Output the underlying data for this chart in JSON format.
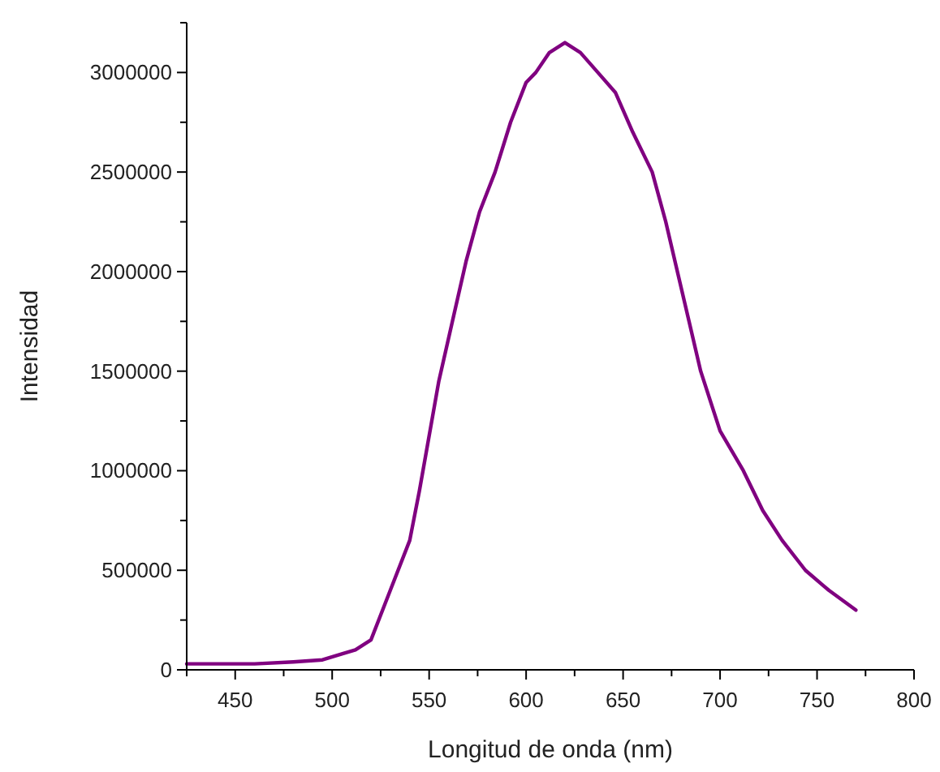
{
  "chart_data": {
    "type": "line",
    "xlabel": "Longitud de onda (nm)",
    "ylabel": "Intensidad",
    "xlim": [
      425,
      800
    ],
    "xticks": [
      {
        "value": 425,
        "label": null
      },
      450,
      {
        "value": 475,
        "label": null
      },
      500,
      {
        "value": 525,
        "label": null
      },
      550,
      {
        "value": 575,
        "label": null
      },
      600,
      {
        "value": 625,
        "label": null
      },
      650,
      {
        "value": 675,
        "label": null
      },
      700,
      {
        "value": 725,
        "label": null
      },
      750,
      {
        "value": 775,
        "label": null
      },
      800
    ],
    "ylim": [
      0,
      3250000
    ],
    "yticks": [
      0,
      {
        "value": 250000,
        "label": null
      },
      500000,
      {
        "value": 750000,
        "label": null
      },
      1000000,
      {
        "value": 1250000,
        "label": null
      },
      1500000,
      {
        "value": 1750000,
        "label": null
      },
      2000000,
      {
        "value": 2250000,
        "label": null
      },
      2500000,
      {
        "value": 2750000,
        "label": null
      },
      3000000,
      {
        "value": 3250000,
        "label": null
      }
    ],
    "grid": false,
    "marker": "none",
    "line_style": "solid",
    "series": [
      {
        "color": "#800080",
        "x": [
          425,
          440,
          460,
          480,
          495,
          505,
          512,
          520,
          530,
          540,
          545,
          555,
          562,
          569,
          576,
          584,
          592,
          600,
          605,
          612,
          620,
          628,
          637,
          646,
          655,
          665,
          672,
          678,
          684,
          690,
          700,
          712,
          722,
          732,
          744,
          756,
          770
        ],
        "values": [
          30000,
          30000,
          30000,
          40000,
          50000,
          80000,
          100000,
          150000,
          400000,
          650000,
          900000,
          1450000,
          1750000,
          2050000,
          2300000,
          2500000,
          2750000,
          2950000,
          3000000,
          3100000,
          3150000,
          3100000,
          3000000,
          2900000,
          2700000,
          2500000,
          2250000,
          2000000,
          1750000,
          1500000,
          1200000,
          1000000,
          800000,
          650000,
          500000,
          400000,
          300000
        ]
      }
    ]
  }
}
